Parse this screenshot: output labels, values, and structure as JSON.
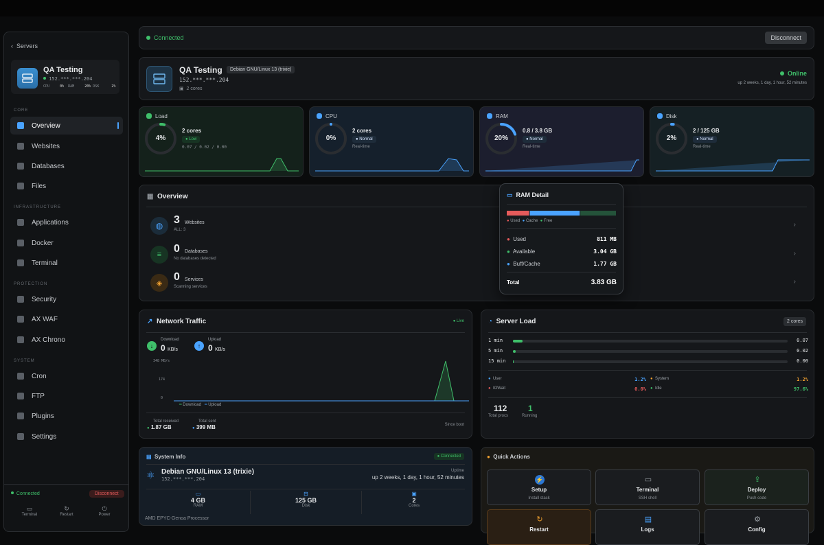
{
  "connection": {
    "status": "Connected",
    "disconnect_label": "Disconnect"
  },
  "sidebar": {
    "back_label": "Servers",
    "server": {
      "name": "QA Testing",
      "ip": "152.***.***.204",
      "cpu_label": "CPU",
      "cpu_val": "0%",
      "ram_label": "RAM",
      "ram_val": "20%",
      "dsk_label": "DSK",
      "dsk_val": "2%"
    },
    "sections": {
      "core": "CORE",
      "infrastructure": "INFRASTRUCTURE",
      "protection": "PROTECTION",
      "system": "SYSTEM"
    },
    "items": [
      {
        "label": "Overview",
        "icon": "grid-icon"
      },
      {
        "label": "Websites",
        "icon": "globe-icon"
      },
      {
        "label": "Databases",
        "icon": "database-icon"
      },
      {
        "label": "Files",
        "icon": "folder-icon"
      },
      {
        "label": "Applications",
        "icon": "layers-icon"
      },
      {
        "label": "Docker",
        "icon": "docker-icon"
      },
      {
        "label": "Terminal",
        "icon": "terminal-icon"
      },
      {
        "label": "Security",
        "icon": "shield-icon"
      },
      {
        "label": "AX WAF",
        "icon": "waf-icon"
      },
      {
        "label": "AX Chrono",
        "icon": "clock-icon"
      },
      {
        "label": "Cron",
        "icon": "cron-icon"
      },
      {
        "label": "FTP",
        "icon": "ftp-icon"
      },
      {
        "label": "Plugins",
        "icon": "plugin-icon"
      },
      {
        "label": "Settings",
        "icon": "gear-icon"
      }
    ],
    "footer": {
      "status": "Connected",
      "disconnect": "Disconnect",
      "terminal": "Terminal",
      "restart": "Restart",
      "power": "Power"
    }
  },
  "header": {
    "name": "QA Testing",
    "os_badge": "Debian GNU/Linux 13 (trixie)",
    "ip": "152.***.***.204",
    "cores": "2 cores",
    "status": "Online",
    "uptime": "up 2 weeks, 1 day, 1 hour, 52 minutes"
  },
  "metrics": [
    {
      "title": "Load",
      "pct": "4%",
      "value": "2 cores",
      "status": "Low",
      "sub": "0.07 / 0.02 / 0.00",
      "fill": 0.04,
      "color": "#3fbf6a"
    },
    {
      "title": "CPU",
      "pct": "0%",
      "value": "2 cores",
      "status": "Normal",
      "sub": "Real-time",
      "fill": 0.0,
      "color": "#4aa3ff"
    },
    {
      "title": "RAM",
      "pct": "20%",
      "value": "0.8 / 3.8 GB",
      "status": "Normal",
      "sub": "Real-time",
      "fill": 0.2,
      "color": "#4aa3ff"
    },
    {
      "title": "Disk",
      "pct": "2%",
      "value": "2 / 125 GB",
      "status": "Normal",
      "sub": "Real-time",
      "fill": 0.02,
      "color": "#4aa3ff"
    }
  ],
  "overview": {
    "title": "Overview",
    "rows": [
      {
        "count": "3",
        "label": "Websites",
        "sub": "ALL: 3"
      },
      {
        "count": "0",
        "label": "Databases",
        "sub": "No databases detected"
      },
      {
        "count": "0",
        "label": "Services",
        "sub": "Scanning services"
      }
    ]
  },
  "ram_detail": {
    "title": "RAM Detail",
    "legend": [
      "Used",
      "Cache",
      "Free"
    ],
    "used_label": "Used",
    "used": "811 MB",
    "avail_label": "Available",
    "avail": "3.04 GB",
    "buff_label": "Buff/Cache",
    "buff": "1.77 GB",
    "total_label": "Total",
    "total": "3.83 GB",
    "bar": [
      0.21,
      0.46,
      0.33
    ]
  },
  "network": {
    "title": "Network Traffic",
    "live": "Live",
    "download_label": "Download",
    "download_val": "0",
    "download_unit": "KB/s",
    "upload_label": "Upload",
    "upload_val": "0",
    "upload_unit": "KB/s",
    "y_ticks": [
      "348 MB/s",
      "174",
      "0"
    ],
    "legend": [
      "Download",
      "Upload"
    ],
    "total_received_label": "Total received",
    "total_received": "1.87 GB",
    "total_sent_label": "Total sent",
    "total_sent": "399 MB",
    "since": "Since boot"
  },
  "server_load": {
    "title": "Server Load",
    "cores": "2 cores",
    "rows": [
      {
        "label": "1 min",
        "value": "0.07",
        "fill": 0.035
      },
      {
        "label": "5 min",
        "value": "0.02",
        "fill": 0.01
      },
      {
        "label": "15 min",
        "value": "0.00",
        "fill": 0.0
      }
    ],
    "user_label": "User",
    "user": "1.2%",
    "system_label": "System",
    "system": "1.2%",
    "iowait_label": "IOWait",
    "iowait": "0.0%",
    "idle_label": "Idle",
    "idle": "97.6%",
    "procs": "112",
    "procs_label": "Total procs",
    "running": "1",
    "running_label": "Running"
  },
  "system_info": {
    "title": "System Info",
    "badge": "Connected",
    "os": "Debian GNU/Linux 13 (trixie)",
    "ip": "152.***.***.204",
    "uptime_label": "Uptime",
    "uptime": "up 2 weeks, 1 day, 1 hour, 52 minutes",
    "ram": "4 GB",
    "ram_label": "RAM",
    "disk": "125 GB",
    "disk_label": "Disk",
    "cores": "2",
    "cores_label": "Cores",
    "cpu": "AMD EPYC-Genoa Processor"
  },
  "quick_actions": {
    "title": "Quick Actions",
    "items": [
      {
        "label": "Setup",
        "sub": "Install stack"
      },
      {
        "label": "Terminal",
        "sub": "SSH shell"
      },
      {
        "label": "Deploy",
        "sub": "Push code"
      },
      {
        "label": "Restart",
        "sub": ""
      },
      {
        "label": "Logs",
        "sub": ""
      },
      {
        "label": "Config",
        "sub": ""
      }
    ]
  }
}
